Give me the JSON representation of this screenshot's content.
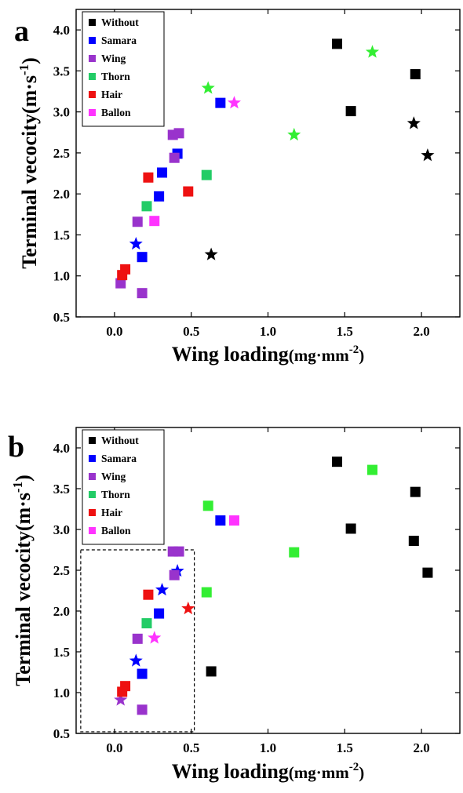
{
  "figure": {
    "panels": [
      {
        "letter": "a"
      },
      {
        "letter": "b"
      }
    ]
  },
  "chart_data": [
    {
      "type": "scatter",
      "panel": "a",
      "title": "",
      "xlabel": "Wing loading",
      "xunit": "(mg·mm",
      "xunit_sup": "-2",
      "xunit_close": ")",
      "ylabel": "Terminal vecocity",
      "yunit": "(m·s",
      "yunit_sup": "-1",
      "yunit_close": ")",
      "xlim": [
        -0.25,
        2.25
      ],
      "ylim": [
        0.5,
        4.25
      ],
      "xticks": [
        "0.0",
        "0.5",
        "1.0",
        "1.5",
        "2.0"
      ],
      "yticks": [
        "0.5",
        "1.0",
        "1.5",
        "2.0",
        "2.5",
        "3.0",
        "3.5",
        "4.0"
      ],
      "grid": false,
      "legend_position": "top-left",
      "series": [
        {
          "name": "Without",
          "color": "#000000",
          "points": [
            {
              "x": 1.45,
              "y": 3.83,
              "marker": "square"
            },
            {
              "x": 1.96,
              "y": 3.46,
              "marker": "square"
            },
            {
              "x": 1.54,
              "y": 3.01,
              "marker": "square"
            },
            {
              "x": 1.95,
              "y": 2.86,
              "marker": "star"
            },
            {
              "x": 2.04,
              "y": 2.47,
              "marker": "star"
            },
            {
              "x": 0.63,
              "y": 1.26,
              "marker": "star"
            }
          ]
        },
        {
          "name": "Samara",
          "color": "#0000ff",
          "points": [
            {
              "x": 0.69,
              "y": 3.11,
              "marker": "square"
            },
            {
              "x": 0.41,
              "y": 2.49,
              "marker": "square"
            },
            {
              "x": 0.31,
              "y": 2.26,
              "marker": "square"
            },
            {
              "x": 0.29,
              "y": 1.97,
              "marker": "square"
            },
            {
              "x": 0.14,
              "y": 1.39,
              "marker": "star"
            },
            {
              "x": 0.18,
              "y": 1.23,
              "marker": "square"
            }
          ]
        },
        {
          "name": "Wing",
          "color": "#9933cc",
          "points": [
            {
              "x": 0.38,
              "y": 2.72,
              "marker": "square"
            },
            {
              "x": 0.42,
              "y": 2.74,
              "marker": "square"
            },
            {
              "x": 0.39,
              "y": 2.44,
              "marker": "square"
            },
            {
              "x": 0.15,
              "y": 1.66,
              "marker": "square"
            },
            {
              "x": 0.04,
              "y": 0.91,
              "marker": "square"
            },
            {
              "x": 0.18,
              "y": 0.79,
              "marker": "square"
            }
          ]
        },
        {
          "name": "Thorn",
          "color": "#22cc66",
          "points": [
            {
              "x": 1.68,
              "y": 3.73,
              "marker": "star",
              "color": "#33ee33"
            },
            {
              "x": 0.61,
              "y": 3.29,
              "marker": "star",
              "color": "#33ee33"
            },
            {
              "x": 1.17,
              "y": 2.72,
              "marker": "star",
              "color": "#33ee33"
            },
            {
              "x": 0.6,
              "y": 2.23,
              "marker": "square"
            },
            {
              "x": 0.21,
              "y": 1.85,
              "marker": "square"
            }
          ]
        },
        {
          "name": "Hair",
          "color": "#ee1111",
          "points": [
            {
              "x": 0.22,
              "y": 2.2,
              "marker": "square"
            },
            {
              "x": 0.48,
              "y": 2.03,
              "marker": "square"
            },
            {
              "x": 0.07,
              "y": 1.08,
              "marker": "square"
            },
            {
              "x": 0.05,
              "y": 1.01,
              "marker": "square"
            }
          ]
        },
        {
          "name": "Ballon",
          "color": "#ff33ff",
          "points": [
            {
              "x": 0.78,
              "y": 3.11,
              "marker": "star"
            },
            {
              "x": 0.26,
              "y": 1.67,
              "marker": "square"
            }
          ]
        }
      ]
    },
    {
      "type": "scatter",
      "panel": "b",
      "title": "",
      "xlabel": "Wing loading",
      "xunit": "(mg·mm",
      "xunit_sup": "-2",
      "xunit_close": ")",
      "ylabel": "Terminal vecocity",
      "yunit": "(m·s",
      "yunit_sup": "-1",
      "yunit_close": ")",
      "xlim": [
        -0.25,
        2.25
      ],
      "ylim": [
        0.5,
        4.25
      ],
      "xticks": [
        "0.0",
        "0.5",
        "1.0",
        "1.5",
        "2.0"
      ],
      "yticks": [
        "0.5",
        "1.0",
        "1.5",
        "2.0",
        "2.5",
        "3.0",
        "3.5",
        "4.0"
      ],
      "grid": false,
      "legend_position": "top-left",
      "highlight_box": {
        "x": [
          -0.22,
          0.52
        ],
        "y": [
          0.52,
          2.75
        ]
      },
      "series": [
        {
          "name": "Without",
          "color": "#000000",
          "points": [
            {
              "x": 1.45,
              "y": 3.83,
              "marker": "square"
            },
            {
              "x": 1.96,
              "y": 3.46,
              "marker": "square"
            },
            {
              "x": 1.54,
              "y": 3.01,
              "marker": "square"
            },
            {
              "x": 1.95,
              "y": 2.86,
              "marker": "square"
            },
            {
              "x": 2.04,
              "y": 2.47,
              "marker": "square"
            },
            {
              "x": 0.63,
              "y": 1.26,
              "marker": "square"
            }
          ]
        },
        {
          "name": "Samara",
          "color": "#0000ff",
          "points": [
            {
              "x": 0.69,
              "y": 3.11,
              "marker": "square"
            },
            {
              "x": 0.41,
              "y": 2.49,
              "marker": "star"
            },
            {
              "x": 0.31,
              "y": 2.26,
              "marker": "star"
            },
            {
              "x": 0.29,
              "y": 1.97,
              "marker": "square"
            },
            {
              "x": 0.14,
              "y": 1.39,
              "marker": "star"
            },
            {
              "x": 0.18,
              "y": 1.23,
              "marker": "square"
            }
          ]
        },
        {
          "name": "Wing",
          "color": "#9933cc",
          "points": [
            {
              "x": 0.38,
              "y": 2.73,
              "marker": "square"
            },
            {
              "x": 0.42,
              "y": 2.73,
              "marker": "square"
            },
            {
              "x": 0.39,
              "y": 2.44,
              "marker": "square"
            },
            {
              "x": 0.15,
              "y": 1.66,
              "marker": "square"
            },
            {
              "x": 0.04,
              "y": 0.91,
              "marker": "star"
            },
            {
              "x": 0.18,
              "y": 0.79,
              "marker": "square"
            }
          ]
        },
        {
          "name": "Thorn",
          "color": "#22cc66",
          "points": [
            {
              "x": 1.68,
              "y": 3.73,
              "marker": "square",
              "color": "#33ee33"
            },
            {
              "x": 0.61,
              "y": 3.29,
              "marker": "square",
              "color": "#33ee33"
            },
            {
              "x": 1.17,
              "y": 2.72,
              "marker": "square",
              "color": "#33ee33"
            },
            {
              "x": 0.6,
              "y": 2.23,
              "marker": "square",
              "color": "#33ee33"
            },
            {
              "x": 0.21,
              "y": 1.85,
              "marker": "square"
            }
          ]
        },
        {
          "name": "Hair",
          "color": "#ee1111",
          "points": [
            {
              "x": 0.22,
              "y": 2.2,
              "marker": "square"
            },
            {
              "x": 0.48,
              "y": 2.03,
              "marker": "star"
            },
            {
              "x": 0.07,
              "y": 1.08,
              "marker": "square"
            },
            {
              "x": 0.05,
              "y": 1.01,
              "marker": "square"
            }
          ]
        },
        {
          "name": "Ballon",
          "color": "#ff33ff",
          "points": [
            {
              "x": 0.78,
              "y": 3.11,
              "marker": "square"
            },
            {
              "x": 0.26,
              "y": 1.67,
              "marker": "star"
            }
          ]
        }
      ]
    }
  ]
}
